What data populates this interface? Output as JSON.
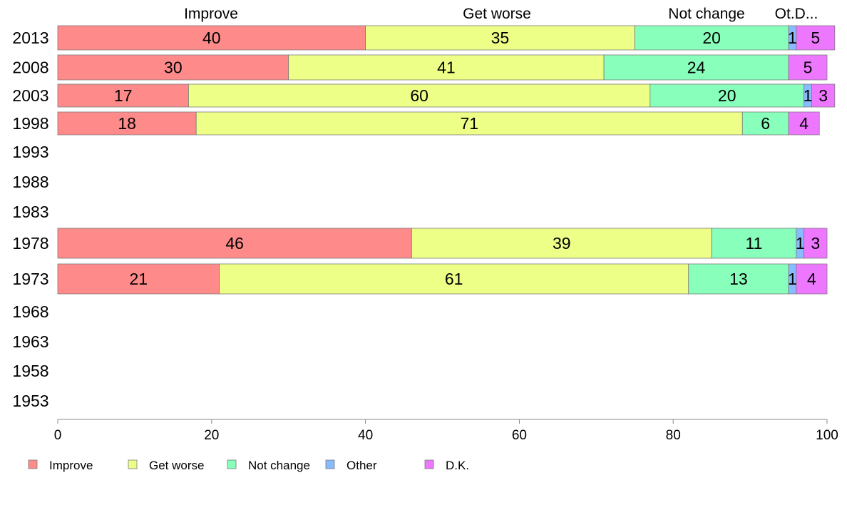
{
  "chart_data": {
    "type": "bar",
    "orientation": "horizontal",
    "stacked": true,
    "categories": [
      "2013",
      "2008",
      "2003",
      "1998",
      "1993",
      "1988",
      "1983",
      "1978",
      "1973",
      "1968",
      "1963",
      "1958",
      "1953"
    ],
    "series": [
      {
        "name": "Improve",
        "color": "#ff8a8a",
        "values": [
          40,
          30,
          17,
          18,
          null,
          null,
          null,
          46,
          21,
          null,
          null,
          null,
          null
        ],
        "labels": [
          "40",
          "30",
          "17",
          "18",
          "",
          "",
          "",
          "46",
          "21",
          "",
          "",
          "",
          ""
        ]
      },
      {
        "name": "Get worse",
        "color": "#eeff88",
        "values": [
          35,
          41,
          60,
          71,
          null,
          null,
          null,
          39,
          61,
          null,
          null,
          null,
          null
        ],
        "labels": [
          "35",
          "41",
          "60",
          "71",
          "",
          "",
          "",
          "39",
          "61",
          "",
          "",
          "",
          ""
        ]
      },
      {
        "name": "Not change",
        "color": "#88ffbb",
        "values": [
          20,
          24,
          20,
          6,
          null,
          null,
          null,
          11,
          13,
          null,
          null,
          null,
          null
        ],
        "labels": [
          "20",
          "24",
          "20",
          "6",
          "",
          "",
          "",
          "11",
          "13",
          "",
          "",
          "",
          ""
        ]
      },
      {
        "name": "Other",
        "color": "#88bbff",
        "values": [
          1,
          0,
          1,
          0,
          null,
          null,
          null,
          1,
          1,
          null,
          null,
          null,
          null
        ],
        "labels": [
          "1",
          "",
          "1",
          "",
          "",
          "",
          "",
          "1",
          "1",
          "",
          "",
          "",
          ""
        ]
      },
      {
        "name": "D.K.",
        "color": "#ee77ff",
        "values": [
          5,
          5,
          3,
          4,
          null,
          null,
          null,
          3,
          4,
          null,
          null,
          null,
          null
        ],
        "labels": [
          "5",
          "5",
          "3",
          "4",
          "",
          "",
          "",
          "3",
          "4",
          "",
          "",
          "",
          ""
        ]
      }
    ],
    "top_labels": [
      "Improve",
      "Get worse",
      "Not change",
      "Ot.D..."
    ],
    "xlim": [
      0,
      100
    ],
    "xticks": [
      "0",
      "20",
      "40",
      "60",
      "80",
      "100"
    ],
    "grid": false,
    "legend_position": "bottom-left",
    "title": "",
    "xlabel": "",
    "ylabel": ""
  }
}
